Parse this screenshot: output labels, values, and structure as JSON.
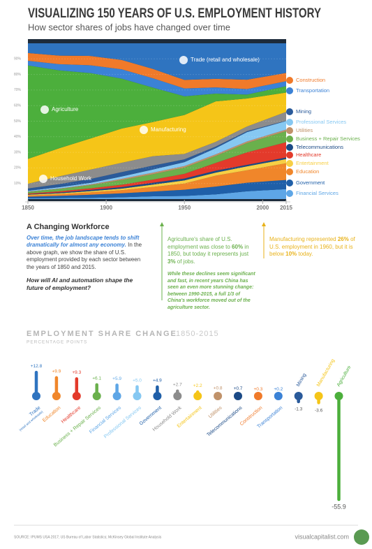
{
  "header": {
    "title": "VISUALIZING 150 YEARS OF U.S. EMPLOYMENT HISTORY",
    "subtitle": "How sector shares of jobs have changed over time"
  },
  "chart_data": [
    {
      "type": "area",
      "stacked": true,
      "grid": true,
      "x": [
        1850,
        1870,
        1890,
        1910,
        1930,
        1950,
        1970,
        1990,
        2015
      ],
      "xlim": [
        1850,
        2015
      ],
      "xticks": [
        1850,
        1900,
        1950,
        2000,
        2015
      ],
      "ylim": [
        0,
        100
      ],
      "yticks": [
        {
          "value": 10,
          "label": "10%"
        },
        {
          "value": 20,
          "label": "20%"
        },
        {
          "value": 30,
          "label": "30%"
        },
        {
          "value": 40,
          "label": "40%"
        },
        {
          "value": 50,
          "label": "50%"
        },
        {
          "value": 60,
          "label": "60%"
        },
        {
          "value": 70,
          "label": "70%"
        },
        {
          "value": 80,
          "label": "80%"
        },
        {
          "value": 90,
          "label": "90%"
        }
      ],
      "series": [
        {
          "name": "Financial Services",
          "color": "#5ea6e6",
          "values": [
            0.5,
            0.6,
            0.8,
            1.2,
            1.8,
            2,
            3,
            5,
            6.4
          ]
        },
        {
          "name": "Government",
          "color": "#1f5fa8",
          "values": [
            1,
            1.5,
            2,
            2.5,
            3,
            4,
            5,
            5.5,
            5.9
          ]
        },
        {
          "name": "Education",
          "color": "#f0862a",
          "values": [
            0.8,
            1,
            1.5,
            2,
            3,
            4,
            7,
            8,
            10.7
          ]
        },
        {
          "name": "Entertainment",
          "color": "#f7cf45",
          "values": [
            0.5,
            0.6,
            0.8,
            1,
            1.5,
            2,
            2,
            2.5,
            2.7
          ]
        },
        {
          "name": "Telecommunications",
          "color": "#1b4a86",
          "values": [
            0.3,
            0.5,
            0.8,
            1,
            1.2,
            1.2,
            1.2,
            1,
            1
          ]
        },
        {
          "name": "Healthcare",
          "color": "#e33a2b",
          "values": [
            0.5,
            0.8,
            1,
            1.5,
            2,
            3,
            5,
            8,
            9.8
          ]
        },
        {
          "name": "Business + Repair Services",
          "color": "#6ab04c",
          "values": [
            1,
            1.5,
            2,
            3,
            3.5,
            4,
            4.5,
            6,
            7.1
          ]
        },
        {
          "name": "Utilities",
          "color": "#c0926a",
          "values": [
            0.2,
            0.3,
            0.5,
            0.8,
            1,
            1,
            1,
            1,
            1
          ]
        },
        {
          "name": "Professional Services",
          "color": "#86c8f2",
          "values": [
            0.5,
            0.8,
            1,
            1.5,
            2,
            2.5,
            4,
            6,
            5.5
          ]
        },
        {
          "name": "Mining",
          "color": "#2a5a9a",
          "values": [
            1.5,
            2,
            2.5,
            2.8,
            2.5,
            1.8,
            1,
            0.6,
            0.2
          ]
        },
        {
          "name": "Household Work",
          "color": "#8c8c8c",
          "values": [
            3,
            5,
            6,
            6,
            6,
            3.5,
            3,
            3,
            5.7
          ]
        },
        {
          "name": "Manufacturing",
          "color": "#f5c518",
          "values": [
            16,
            18,
            20,
            22,
            22,
            25,
            26,
            18,
            12.4
          ]
        },
        {
          "name": "Agriculture",
          "color": "#4caf3c",
          "values": [
            60,
            50,
            42,
            32,
            22,
            12,
            5,
            2.5,
            4.1
          ]
        },
        {
          "name": "Transportation",
          "color": "#3b82d6",
          "values": [
            3,
            4,
            5,
            6,
            6,
            5,
            4,
            3.5,
            3.2
          ]
        },
        {
          "name": "Construction",
          "color": "#f07a2a",
          "values": [
            5,
            5.5,
            6,
            6,
            6,
            5.5,
            5.5,
            6,
            5.3
          ]
        },
        {
          "name": "Trade (retail and wholesale)",
          "color": "#2f74c0",
          "values": [
            6.2,
            7.9,
            8.1,
            10.7,
            16.5,
            23.5,
            22.8,
            23.4,
            19
          ]
        }
      ]
    },
    {
      "type": "lollipop",
      "title": "EMPLOYMENT SHARE CHANGE",
      "period": "1850-2015",
      "subtitle": "PERCENTAGE POINTS",
      "categories": [
        "Trade",
        "Education",
        "Healthcare",
        "Business + Repair Services",
        "Financial Services",
        "Professional Services",
        "Government",
        "Household Work",
        "Entertainment",
        "Utilities",
        "Telecommunications",
        "Construction",
        "Transportation",
        "Mining",
        "Manufacturing",
        "Agriculture"
      ],
      "note": "(retail and wholesale)",
      "values": [
        12.8,
        9.9,
        9.3,
        6.1,
        5.9,
        5.0,
        4.9,
        2.7,
        2.2,
        0.8,
        0.7,
        0.3,
        0.2,
        -1.3,
        -3.6,
        -55.9
      ],
      "value_labels": [
        "+12.8",
        "+9.9",
        "+9.3",
        "+6.1",
        "+5.9",
        "+5.0",
        "+4.9",
        "+2.7",
        "+2.2",
        "+0.8",
        "+0.7",
        "+0.3",
        "+0.2",
        "-1.3",
        "-3.6",
        "-55.9"
      ],
      "colors": [
        "#2f74c0",
        "#f0862a",
        "#e33a2b",
        "#6ab04c",
        "#5ea6e6",
        "#86c8f2",
        "#1f5fa8",
        "#8c8c8c",
        "#f5c518",
        "#c0926a",
        "#1b4a86",
        "#f07a2a",
        "#3b82d6",
        "#2a5a9a",
        "#f5c518",
        "#4caf3c"
      ]
    }
  ],
  "intro": {
    "heading": "A Changing Workforce",
    "paragraph": [
      {
        "text": "Over time, the job landscape tends to shift dramatically for almost any economy.",
        "emphasis": true
      },
      {
        "text": "In the above graph, we show the share of U.S. employment provided by each sector between the years of 1850 and 2015."
      }
    ],
    "question": "How will AI and automation shape the future of employment?"
  },
  "agriculture_note": {
    "paragraph": [
      {
        "text": "Agriculture's share of U.S. employment was close to "
      },
      {
        "text": "60%",
        "strong": true
      },
      {
        "text": " in 1850, but today it represents just "
      },
      {
        "text": "3%",
        "strong": true
      },
      {
        "text": " of jobs."
      }
    ],
    "china": "While these declines seem significant and fast, in recent years China has seen an even more stunning change: between 1990-2015, a full 1/3 of China's workforce moved out of the agriculture sector."
  },
  "manufacturing_note": {
    "paragraph": [
      {
        "text": "Manufacturing represented "
      },
      {
        "text": "26%",
        "strong": true
      },
      {
        "text": " of U.S. employment in 1960, but it is below "
      },
      {
        "text": "10%",
        "strong": true
      },
      {
        "text": " today."
      }
    ]
  },
  "footer": {
    "source": "SOURCE: IPUMS USA 2017; US Bureau of Labor Statistics; McKinsey Global Institute Analysis",
    "site": "visualcapitalist.com"
  }
}
